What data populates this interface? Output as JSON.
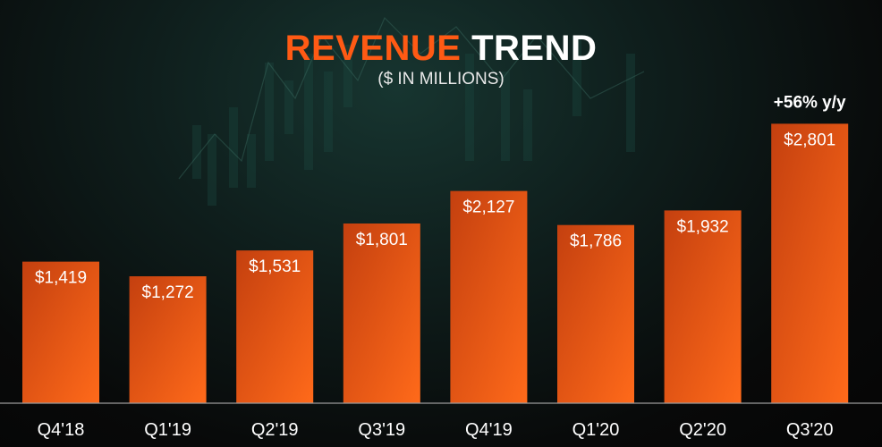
{
  "title_part1": "REVENUE",
  "title_part2": "TREND",
  "subtitle": "($ IN MILLIONS)",
  "annotation": "+56% y/y",
  "colors": {
    "accent": "#ff5a14",
    "bar_top": "#c84010",
    "bar_bottom": "#ff6a1a"
  },
  "chart_data": {
    "type": "bar",
    "title": "REVENUE TREND",
    "subtitle": "($ IN MILLIONS)",
    "xlabel": "",
    "ylabel": "",
    "categories": [
      "Q4'18",
      "Q1'19",
      "Q2'19",
      "Q3'19",
      "Q4'19",
      "Q1'20",
      "Q2'20",
      "Q3'20"
    ],
    "values": [
      1419,
      1272,
      1531,
      1801,
      2127,
      1786,
      1932,
      2801
    ],
    "value_labels": [
      "$1,419",
      "$1,272",
      "$1,531",
      "$1,801",
      "$2,127",
      "$1,786",
      "$1,932",
      "$2,801"
    ],
    "annotations": [
      {
        "category": "Q3'20",
        "text": "+56% y/y"
      }
    ],
    "grid": false,
    "legend": "none"
  }
}
